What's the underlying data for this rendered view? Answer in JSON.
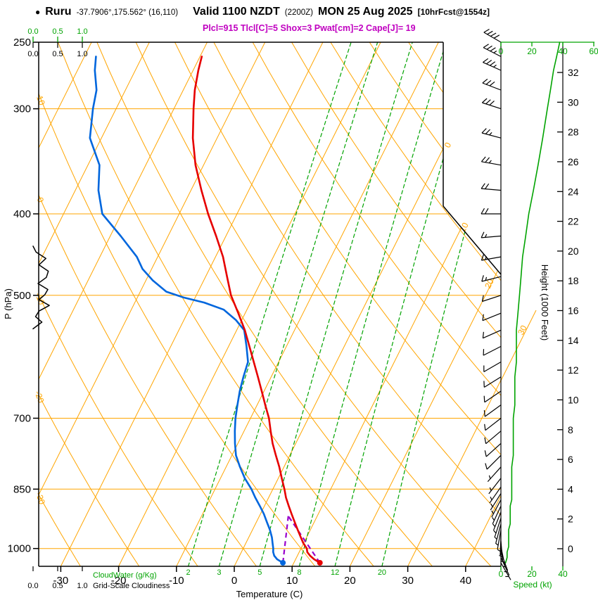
{
  "header": {
    "bullet": "●",
    "station": "Ruru",
    "coords": "-37.7906°,175.562° (16,110)",
    "valid": "Valid 1100 NZDT",
    "zulu": "(2200Z)",
    "date": "MON 25 Aug 2025",
    "fcst": "[10hrFcst@1554z]",
    "params_line": "Plcl=915 Tlcl[C]=5 Shox=3 Pwat[cm]=2 Cape[J]= 19"
  },
  "chart_data": {
    "type": "skewt_log_p_sounding",
    "title": "Ruru sounding Valid 1100 NZDT (2200Z) MON 25 Aug 2025",
    "pressure_axis": {
      "label": "P (hPa)",
      "ticks": [
        250,
        300,
        400,
        500,
        700,
        850,
        1000
      ],
      "top_hpa": 250,
      "bottom_hpa": 1050
    },
    "temperature_axis": {
      "label": "Temperature (C)",
      "ticks": [
        -30,
        -20,
        -10,
        0,
        10,
        20,
        30,
        40
      ]
    },
    "height_axis": {
      "label": "Height (1000 Feet)",
      "ticks": [
        0,
        2,
        4,
        6,
        8,
        10,
        12,
        14,
        16,
        18,
        20,
        22,
        24,
        26,
        28,
        30,
        32
      ]
    },
    "speed_axis": {
      "label": "Speed (kt)",
      "top_ticks": [
        0,
        20,
        40,
        60
      ],
      "bottom_ticks": [
        0,
        20,
        40
      ]
    },
    "cloudwater_axis": {
      "label": "CloudWater (g/Kg)",
      "ticks": [
        "0.0",
        "0.5",
        "1.0"
      ]
    },
    "cloudiness_axis": {
      "label": "Grid-Scale Cloudiness",
      "ticks": [
        "0.0",
        "0.5",
        "1.0"
      ]
    },
    "dry_adiabat_labels_c": [
      10,
      0,
      -10,
      -20,
      -30
    ],
    "isotherm_labels_c": [
      0,
      10,
      20,
      30
    ],
    "mixing_ratio_lines_g_kg": [
      2,
      3,
      5,
      8,
      12,
      20
    ],
    "parcel": {
      "plcl_hpa": 915,
      "tlcl_c": 5,
      "surface_p_hpa": 1040,
      "surface_t_c": 14.5,
      "surface_td_c": 8.1
    },
    "temperature_profile_p_T": [
      [
        1040,
        14.5
      ],
      [
        1030,
        13.2
      ],
      [
        1020,
        12.2
      ],
      [
        1010,
        11.4
      ],
      [
        1000,
        11.0
      ],
      [
        985,
        9.9
      ],
      [
        970,
        9.0
      ],
      [
        950,
        7.8
      ],
      [
        930,
        6.6
      ],
      [
        910,
        5.4
      ],
      [
        890,
        4.2
      ],
      [
        870,
        3.0
      ],
      [
        850,
        2.0
      ],
      [
        825,
        0.6
      ],
      [
        800,
        -0.8
      ],
      [
        775,
        -2.4
      ],
      [
        750,
        -4.0
      ],
      [
        725,
        -5.4
      ],
      [
        700,
        -6.8
      ],
      [
        675,
        -8.6
      ],
      [
        650,
        -10.4
      ],
      [
        625,
        -12.3
      ],
      [
        600,
        -14.3
      ],
      [
        575,
        -16.4
      ],
      [
        550,
        -18.6
      ],
      [
        525,
        -21.2
      ],
      [
        500,
        -24.0
      ],
      [
        475,
        -26.3
      ],
      [
        450,
        -28.7
      ],
      [
        425,
        -31.7
      ],
      [
        400,
        -35.0
      ],
      [
        375,
        -38.2
      ],
      [
        350,
        -41.4
      ],
      [
        325,
        -44.2
      ],
      [
        300,
        -46.6
      ],
      [
        285,
        -48.0
      ],
      [
        270,
        -49.1
      ],
      [
        260,
        -49.7
      ]
    ],
    "dewpoint_profile_p_Td": [
      [
        1040,
        8.1
      ],
      [
        1030,
        6.8
      ],
      [
        1020,
        6.0
      ],
      [
        1010,
        5.5
      ],
      [
        1000,
        5.2
      ],
      [
        985,
        4.6
      ],
      [
        970,
        4.0
      ],
      [
        950,
        3.0
      ],
      [
        930,
        1.8
      ],
      [
        910,
        0.6
      ],
      [
        890,
        -0.8
      ],
      [
        870,
        -2.3
      ],
      [
        850,
        -3.7
      ],
      [
        825,
        -5.8
      ],
      [
        800,
        -7.6
      ],
      [
        775,
        -9.3
      ],
      [
        750,
        -10.5
      ],
      [
        725,
        -11.6
      ],
      [
        700,
        -12.6
      ],
      [
        675,
        -13.4
      ],
      [
        650,
        -14.2
      ],
      [
        625,
        -14.8
      ],
      [
        600,
        -15.3
      ],
      [
        575,
        -16.9
      ],
      [
        550,
        -18.7
      ],
      [
        535,
        -21.0
      ],
      [
        520,
        -24.0
      ],
      [
        510,
        -28.0
      ],
      [
        503,
        -32.0
      ],
      [
        495,
        -35.5
      ],
      [
        480,
        -38.8
      ],
      [
        465,
        -41.6
      ],
      [
        450,
        -43.6
      ],
      [
        425,
        -48.2
      ],
      [
        400,
        -53.3
      ],
      [
        375,
        -56.0
      ],
      [
        350,
        -58.0
      ],
      [
        325,
        -62.0
      ],
      [
        300,
        -64.0
      ],
      [
        285,
        -65.0
      ],
      [
        270,
        -67.0
      ],
      [
        260,
        -68.0
      ]
    ],
    "cloudiness_profile_p_frac": [
      [
        548,
        0
      ],
      [
        538,
        0.18
      ],
      [
        530,
        0.05
      ],
      [
        522,
        0.12
      ],
      [
        514,
        0.33
      ],
      [
        506,
        0.12
      ],
      [
        499,
        0.24
      ],
      [
        492,
        0.3
      ],
      [
        484,
        0.1
      ],
      [
        476,
        0.27
      ],
      [
        468,
        0.31
      ],
      [
        460,
        0.12
      ],
      [
        452,
        0.26
      ],
      [
        444,
        0.06
      ],
      [
        437,
        0
      ]
    ],
    "wind_profile_p_kt_dir": [
      [
        1040,
        3,
        150
      ],
      [
        1025,
        4,
        155
      ],
      [
        1010,
        4,
        160
      ],
      [
        995,
        5,
        168
      ],
      [
        980,
        5,
        175
      ],
      [
        965,
        5,
        182
      ],
      [
        950,
        5,
        190
      ],
      [
        935,
        6,
        195
      ],
      [
        920,
        6,
        198
      ],
      [
        905,
        6,
        202
      ],
      [
        890,
        6,
        205
      ],
      [
        875,
        7,
        208
      ],
      [
        860,
        7,
        212
      ],
      [
        845,
        7,
        215
      ],
      [
        825,
        7,
        218
      ],
      [
        800,
        7,
        222
      ],
      [
        775,
        8,
        225
      ],
      [
        750,
        8,
        228
      ],
      [
        725,
        8,
        230
      ],
      [
        700,
        8,
        232
      ],
      [
        675,
        9,
        234
      ],
      [
        650,
        9,
        236
      ],
      [
        625,
        9,
        238
      ],
      [
        600,
        10,
        240
      ],
      [
        575,
        10,
        243
      ],
      [
        550,
        10,
        246
      ],
      [
        525,
        11,
        248
      ],
      [
        500,
        12,
        252
      ],
      [
        475,
        13,
        256
      ],
      [
        450,
        14,
        260
      ],
      [
        425,
        16,
        265
      ],
      [
        400,
        18,
        270
      ],
      [
        375,
        21,
        275
      ],
      [
        350,
        24,
        280
      ],
      [
        325,
        27,
        285
      ],
      [
        300,
        30,
        288
      ],
      [
        285,
        32,
        291
      ],
      [
        270,
        34,
        294
      ],
      [
        260,
        36,
        297
      ],
      [
        250,
        38,
        300
      ]
    ],
    "colors": {
      "grid_orange": "#FFA500",
      "moisture_green": "#00A300",
      "temperature_red": "#E60000",
      "dewpoint_blue": "#0066DD",
      "parcel_magenta": "#9900CC",
      "params_magenta": "#C000C0",
      "axis_black": "#000000"
    }
  }
}
